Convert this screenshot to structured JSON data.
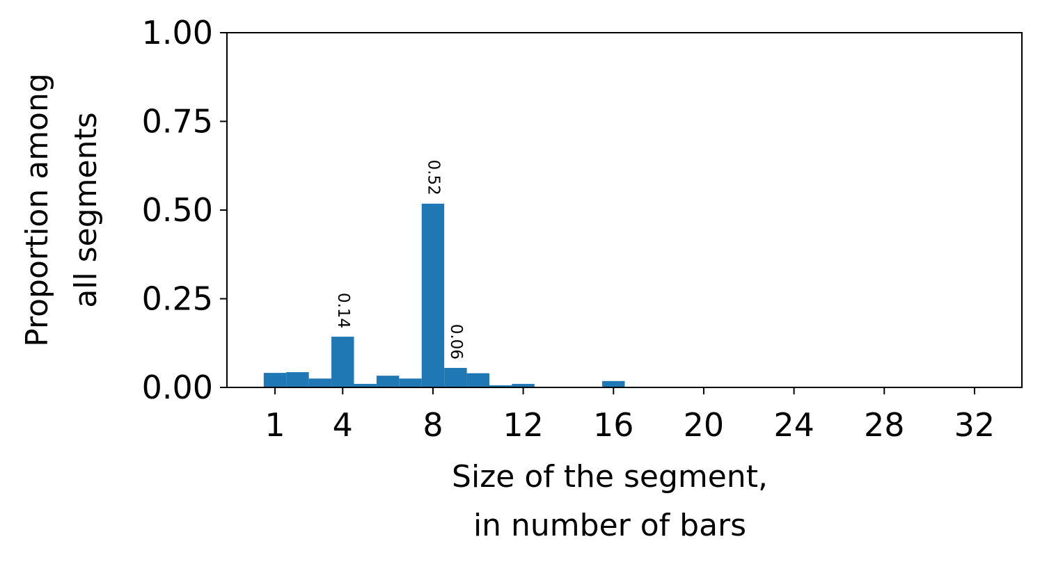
{
  "chart_data": {
    "type": "bar",
    "xlabel": "Size of the segment,\nin number of bars",
    "ylabel": "Proportion among\nall segments",
    "x": [
      1,
      2,
      3,
      4,
      5,
      6,
      7,
      8,
      9,
      10,
      11,
      12,
      13,
      14,
      15,
      16
    ],
    "values": [
      0.041,
      0.043,
      0.025,
      0.143,
      0.01,
      0.033,
      0.025,
      0.518,
      0.055,
      0.04,
      0.006,
      0.01,
      0.001,
      0.002,
      0.001,
      0.018
    ],
    "value_labels": [
      null,
      null,
      null,
      "0.14",
      null,
      null,
      null,
      "0.52",
      "0.06",
      null,
      null,
      null,
      null,
      null,
      null,
      null
    ],
    "color": "#1f77b4",
    "xlim": [
      -1.13,
      34.1
    ],
    "xticks": [
      1,
      4,
      8,
      12,
      16,
      20,
      24,
      28,
      32
    ],
    "ylim": [
      0,
      1
    ],
    "yticks": [
      {
        "value": 0,
        "label": "0.00"
      },
      {
        "value": 0.25,
        "label": "0.25"
      },
      {
        "value": 0.5,
        "label": "0.50"
      },
      {
        "value": 0.75,
        "label": "0.75"
      },
      {
        "value": 1,
        "label": "1.00"
      }
    ]
  }
}
